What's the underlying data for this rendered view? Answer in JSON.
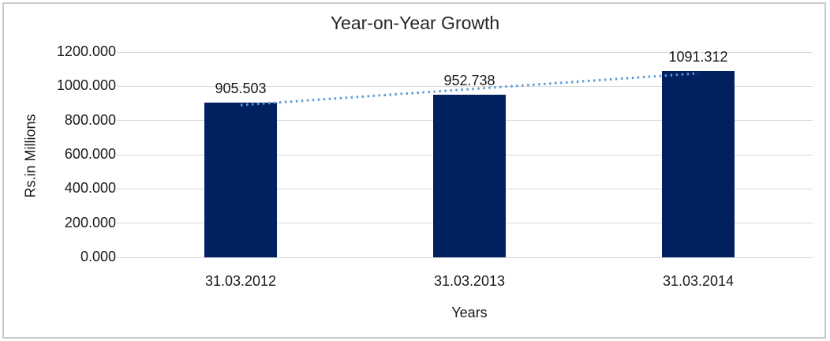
{
  "frame": {
    "border_color": "#c9c9c9",
    "background": "#ffffff"
  },
  "chart_data": {
    "type": "bar",
    "title": "Year-on-Year Growth",
    "xlabel": "Years",
    "ylabel": "Rs.in Millions",
    "categories": [
      "31.03.2012",
      "31.03.2013",
      "31.03.2014"
    ],
    "values": [
      905.503,
      952.738,
      1091.312
    ],
    "value_labels": [
      "905.503",
      "952.738",
      "1091.312"
    ],
    "ylim": [
      0,
      1200
    ],
    "ytick_step": 200,
    "ytick_labels": [
      "0.000",
      "200.000",
      "400.000",
      "600.000",
      "800.000",
      "1000.000",
      "1200.000"
    ],
    "grid": true,
    "legend": "none",
    "bar_color": "#002060",
    "gridline_color": "#d9d9d9",
    "trendline": {
      "type": "linear",
      "style": "dotted",
      "color": "#5b9bd5"
    },
    "text_color": "#1a1a1a"
  }
}
